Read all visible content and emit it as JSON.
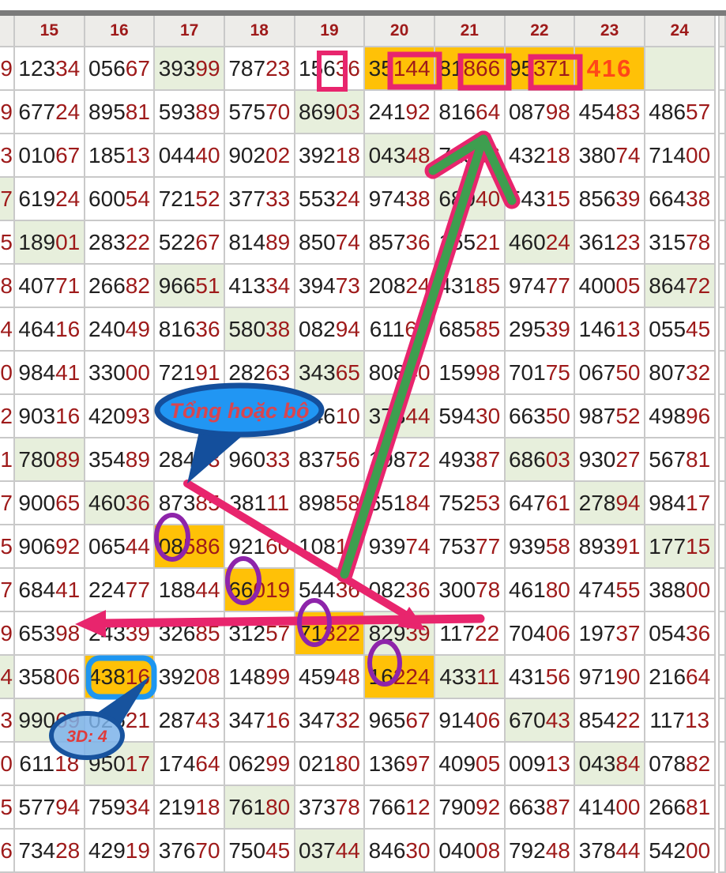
{
  "header": {
    "columns": [
      "15",
      "16",
      "17",
      "18",
      "19",
      "20",
      "21",
      "22",
      "23",
      "24"
    ]
  },
  "colors": {
    "digit_black": "#202020",
    "digit_red": "#9e1a1a",
    "header_red": "#9e1a1a",
    "cell_green": "#e7efdc",
    "cell_orange": "#ffc107",
    "special_red": "#ff4718",
    "annotation_pink": "#e8256d",
    "annotation_green": "#3e9e4f",
    "annotation_purple": "#8e24aa",
    "annotation_blue": "#1e96f0",
    "annotation_navy": "#17539e",
    "bubble_fill": "#2196f3",
    "bubble2_fill": "#7db3ea",
    "bubble_text_red": "#d9454f"
  },
  "annotations": {
    "bubble1": {
      "text": "Tổng hoặc bộ"
    },
    "bubble2": {
      "text": "3D: 4"
    }
  },
  "table": {
    "rows": [
      {
        "left": "9",
        "cells": [
          [
            "12334",
            "w"
          ],
          [
            "05667",
            "w"
          ],
          [
            "39399",
            "g"
          ],
          [
            "78723",
            "w"
          ],
          [
            "15636",
            "w"
          ],
          [
            "35144",
            "o",
            2
          ],
          [
            "81866",
            "o",
            2
          ],
          [
            "95371",
            "o",
            2
          ],
          [
            "416",
            "o",
            -1
          ],
          [
            "",
            "g"
          ]
        ]
      },
      {
        "left": "9",
        "cells": [
          [
            "67724",
            "w"
          ],
          [
            "89581",
            "w"
          ],
          [
            "59389",
            "w"
          ],
          [
            "57570",
            "w"
          ],
          [
            "86903",
            "g"
          ],
          [
            "24192",
            "w"
          ],
          [
            "81664",
            "w"
          ],
          [
            "08798",
            "w"
          ],
          [
            "45483",
            "w"
          ],
          [
            "48657",
            "w"
          ]
        ]
      },
      {
        "left": "3",
        "cells": [
          [
            "01067",
            "w"
          ],
          [
            "18513",
            "w"
          ],
          [
            "04440",
            "w"
          ],
          [
            "90202",
            "w"
          ],
          [
            "39218",
            "w"
          ],
          [
            "04348",
            "g"
          ],
          [
            "71836",
            "w"
          ],
          [
            "43218",
            "w"
          ],
          [
            "38074",
            "w"
          ],
          [
            "71400",
            "w"
          ]
        ]
      },
      {
        "left": "7",
        "lg": true,
        "cells": [
          [
            "61924",
            "w"
          ],
          [
            "60054",
            "w"
          ],
          [
            "72152",
            "w"
          ],
          [
            "37733",
            "w"
          ],
          [
            "55324",
            "w"
          ],
          [
            "97438",
            "w"
          ],
          [
            "68940",
            "g"
          ],
          [
            "54315",
            "w"
          ],
          [
            "85639",
            "w"
          ],
          [
            "66438",
            "w"
          ]
        ]
      },
      {
        "left": "5",
        "cells": [
          [
            "18901",
            "g"
          ],
          [
            "28322",
            "w"
          ],
          [
            "52267",
            "w"
          ],
          [
            "81489",
            "w"
          ],
          [
            "85074",
            "w"
          ],
          [
            "85736",
            "w"
          ],
          [
            "15521",
            "w"
          ],
          [
            "46024",
            "g"
          ],
          [
            "36123",
            "w"
          ],
          [
            "31578",
            "w"
          ]
        ]
      },
      {
        "left": "8",
        "cells": [
          [
            "40771",
            "w"
          ],
          [
            "26682",
            "w"
          ],
          [
            "96651",
            "g"
          ],
          [
            "41334",
            "w"
          ],
          [
            "39473",
            "w"
          ],
          [
            "20824",
            "w"
          ],
          [
            "43185",
            "w"
          ],
          [
            "97477",
            "w"
          ],
          [
            "40005",
            "w"
          ],
          [
            "86472",
            "g"
          ]
        ]
      },
      {
        "left": "4",
        "cells": [
          [
            "46416",
            "w"
          ],
          [
            "24049",
            "w"
          ],
          [
            "81636",
            "w"
          ],
          [
            "58038",
            "g"
          ],
          [
            "08294",
            "w"
          ],
          [
            "61167",
            "w"
          ],
          [
            "68585",
            "w"
          ],
          [
            "29539",
            "w"
          ],
          [
            "14613",
            "w"
          ],
          [
            "05545",
            "w"
          ]
        ]
      },
      {
        "left": "0",
        "cells": [
          [
            "98441",
            "w"
          ],
          [
            "33000",
            "w"
          ],
          [
            "72191",
            "w"
          ],
          [
            "28263",
            "w"
          ],
          [
            "34365",
            "g"
          ],
          [
            "80840",
            "w"
          ],
          [
            "15998",
            "w"
          ],
          [
            "70175",
            "w"
          ],
          [
            "06750",
            "w"
          ],
          [
            "80732",
            "w"
          ]
        ]
      },
      {
        "left": "2",
        "cells": [
          [
            "90316",
            "w"
          ],
          [
            "42093",
            "w"
          ],
          [
            "",
            "w"
          ],
          [
            "",
            "w"
          ],
          [
            "34610",
            "w"
          ],
          [
            "37344",
            "g"
          ],
          [
            "59430",
            "w"
          ],
          [
            "66350",
            "w"
          ],
          [
            "98752",
            "w"
          ],
          [
            "49896",
            "w"
          ]
        ]
      },
      {
        "left": "1",
        "cells": [
          [
            "78089",
            "g"
          ],
          [
            "35489",
            "w"
          ],
          [
            "28453",
            "w"
          ],
          [
            "96033",
            "w"
          ],
          [
            "83756",
            "w"
          ],
          [
            "19872",
            "w"
          ],
          [
            "49387",
            "w"
          ],
          [
            "68603",
            "g"
          ],
          [
            "93027",
            "w"
          ],
          [
            "56781",
            "w"
          ]
        ]
      },
      {
        "left": "7",
        "cells": [
          [
            "90065",
            "w"
          ],
          [
            "46036",
            "g"
          ],
          [
            "87385",
            "w"
          ],
          [
            "38111",
            "w"
          ],
          [
            "89858",
            "w"
          ],
          [
            "65184",
            "w"
          ],
          [
            "75253",
            "w"
          ],
          [
            "64761",
            "w"
          ],
          [
            "27894",
            "g"
          ],
          [
            "98417",
            "w"
          ]
        ]
      },
      {
        "left": "5",
        "cells": [
          [
            "90692",
            "w"
          ],
          [
            "06544",
            "w"
          ],
          [
            "08586",
            "o",
            2
          ],
          [
            "92160",
            "w"
          ],
          [
            "10814",
            "w"
          ],
          [
            "93974",
            "w"
          ],
          [
            "75377",
            "w"
          ],
          [
            "93958",
            "w"
          ],
          [
            "89391",
            "w"
          ],
          [
            "17715",
            "g"
          ]
        ]
      },
      {
        "left": "7",
        "cells": [
          [
            "68441",
            "w"
          ],
          [
            "22477",
            "w"
          ],
          [
            "18844",
            "w"
          ],
          [
            "66019",
            "o",
            2
          ],
          [
            "54436",
            "w"
          ],
          [
            "08236",
            "w"
          ],
          [
            "30078",
            "w"
          ],
          [
            "46180",
            "w"
          ],
          [
            "47455",
            "w"
          ],
          [
            "38800",
            "w"
          ]
        ]
      },
      {
        "left": "9",
        "cells": [
          [
            "65398",
            "w"
          ],
          [
            "24339",
            "w"
          ],
          [
            "32685",
            "w"
          ],
          [
            "31257",
            "w"
          ],
          [
            "71322",
            "o",
            2
          ],
          [
            "82939",
            "g"
          ],
          [
            "11722",
            "w"
          ],
          [
            "70406",
            "w"
          ],
          [
            "19737",
            "w"
          ],
          [
            "05436",
            "w"
          ]
        ]
      },
      {
        "left": "4",
        "lg": true,
        "cells": [
          [
            "35806",
            "w"
          ],
          [
            "43816",
            "o"
          ],
          [
            "39208",
            "w"
          ],
          [
            "14899",
            "w"
          ],
          [
            "45948",
            "w"
          ],
          [
            "16224",
            "o",
            2
          ],
          [
            "43311",
            "g"
          ],
          [
            "43156",
            "w"
          ],
          [
            "97190",
            "w"
          ],
          [
            "21664",
            "w"
          ]
        ]
      },
      {
        "left": "3",
        "cells": [
          [
            "99069",
            "g"
          ],
          [
            "02621",
            "w"
          ],
          [
            "28743",
            "w"
          ],
          [
            "34716",
            "w"
          ],
          [
            "34732",
            "w"
          ],
          [
            "96567",
            "w"
          ],
          [
            "91406",
            "w"
          ],
          [
            "67043",
            "g"
          ],
          [
            "85422",
            "w"
          ],
          [
            "11713",
            "w"
          ]
        ]
      },
      {
        "left": "0",
        "cells": [
          [
            "61118",
            "w"
          ],
          [
            "95017",
            "g"
          ],
          [
            "17464",
            "w"
          ],
          [
            "06299",
            "w"
          ],
          [
            "02180",
            "w"
          ],
          [
            "13697",
            "w"
          ],
          [
            "40905",
            "w"
          ],
          [
            "00913",
            "w"
          ],
          [
            "04384",
            "g"
          ],
          [
            "07882",
            "w"
          ]
        ]
      },
      {
        "left": "5",
        "cells": [
          [
            "57794",
            "w"
          ],
          [
            "75934",
            "w"
          ],
          [
            "21918",
            "w"
          ],
          [
            "76180",
            "g"
          ],
          [
            "37378",
            "w"
          ],
          [
            "76612",
            "w"
          ],
          [
            "79092",
            "w"
          ],
          [
            "66387",
            "w"
          ],
          [
            "41400",
            "w"
          ],
          [
            "26681",
            "w"
          ]
        ]
      },
      {
        "left": "6",
        "cells": [
          [
            "73428",
            "w"
          ],
          [
            "42919",
            "w"
          ],
          [
            "37670",
            "w"
          ],
          [
            "75045",
            "w"
          ],
          [
            "03744",
            "g"
          ],
          [
            "84630",
            "w"
          ],
          [
            "04008",
            "w"
          ],
          [
            "79248",
            "w"
          ],
          [
            "37844",
            "w"
          ],
          [
            "54200",
            "w"
          ]
        ]
      }
    ]
  }
}
